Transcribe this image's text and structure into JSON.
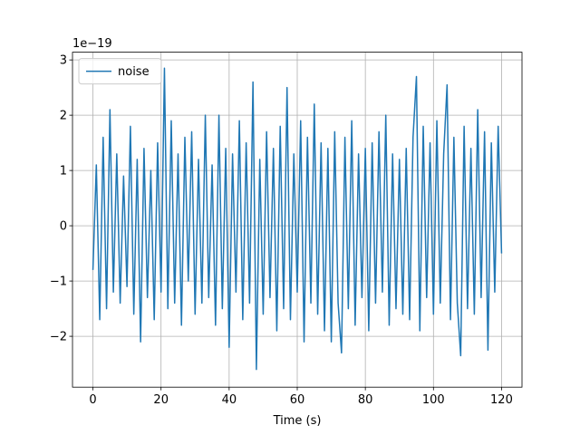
{
  "chart_data": {
    "type": "line",
    "x_label": "Time (s)",
    "offset_label": "1e−19",
    "x": [
      0,
      1,
      2,
      3,
      4,
      5,
      6,
      7,
      8,
      9,
      10,
      11,
      12,
      13,
      14,
      15,
      16,
      17,
      18,
      19,
      20,
      21,
      22,
      23,
      24,
      25,
      26,
      27,
      28,
      29,
      30,
      31,
      32,
      33,
      34,
      35,
      36,
      37,
      38,
      39,
      40,
      41,
      42,
      43,
      44,
      45,
      46,
      47,
      48,
      49,
      50,
      51,
      52,
      53,
      54,
      55,
      56,
      57,
      58,
      59,
      60,
      61,
      62,
      63,
      64,
      65,
      66,
      67,
      68,
      69,
      70,
      71,
      72,
      73,
      74,
      75,
      76,
      77,
      78,
      79,
      80,
      81,
      82,
      83,
      84,
      85,
      86,
      87,
      88,
      89,
      90,
      91,
      92,
      93,
      94,
      95,
      96,
      97,
      98,
      99,
      100,
      101,
      102,
      103,
      104,
      105,
      106,
      107,
      108,
      109,
      110,
      111,
      112,
      113,
      114,
      115,
      116,
      117,
      118,
      119,
      120
    ],
    "series": [
      {
        "name": "noise",
        "color": "#1f77b4",
        "values": [
          -0.8,
          1.1,
          -1.7,
          1.6,
          -1.5,
          2.1,
          -1.2,
          1.3,
          -1.4,
          0.9,
          -1.1,
          1.8,
          -1.6,
          1.2,
          -2.1,
          1.4,
          -1.3,
          1.0,
          -1.7,
          1.5,
          -1.2,
          2.85,
          -1.5,
          1.9,
          -1.4,
          1.3,
          -1.8,
          1.6,
          -1.0,
          1.7,
          -1.6,
          1.2,
          -1.4,
          2.0,
          -1.3,
          1.1,
          -1.8,
          2.0,
          -1.5,
          1.4,
          -2.2,
          1.3,
          -1.2,
          1.9,
          -1.7,
          1.5,
          -1.4,
          2.6,
          -2.6,
          1.2,
          -1.6,
          1.7,
          -1.3,
          1.4,
          -1.9,
          1.8,
          -1.5,
          2.5,
          -1.7,
          1.3,
          -1.2,
          1.9,
          -2.1,
          1.6,
          -1.4,
          2.2,
          -1.6,
          1.5,
          -1.9,
          1.4,
          -2.1,
          1.7,
          -1.4,
          -2.3,
          1.6,
          -1.5,
          1.9,
          -1.8,
          1.3,
          -1.3,
          1.4,
          -1.9,
          1.5,
          -1.4,
          1.7,
          -1.2,
          2.0,
          -1.8,
          1.3,
          -1.5,
          1.2,
          -1.6,
          1.4,
          -1.7,
          1.6,
          2.7,
          -1.9,
          1.8,
          -1.3,
          1.5,
          -1.6,
          1.9,
          -1.4,
          1.3,
          2.55,
          -1.7,
          1.6,
          -1.4,
          -2.35,
          1.8,
          -1.5,
          1.4,
          -1.6,
          2.1,
          -1.3,
          1.7,
          -2.25,
          1.5,
          -1.2,
          1.8,
          -0.5
        ]
      }
    ],
    "xlim": [
      -6,
      126
    ],
    "ylim": [
      -2.92,
      3.14
    ],
    "xticks": [
      0,
      20,
      40,
      60,
      80,
      100,
      120
    ],
    "yticks": [
      {
        "value": -2,
        "label": "−2"
      },
      {
        "value": -1,
        "label": "−1"
      },
      0,
      1,
      2,
      3
    ],
    "grid": true,
    "legend": "upper left"
  }
}
